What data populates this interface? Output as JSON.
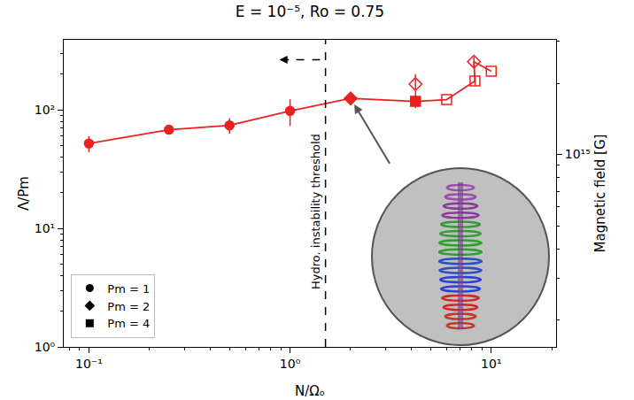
{
  "chart_data": {
    "type": "scatter",
    "title": "E = 10⁻⁵, Ro = 0.75",
    "x_label": "N/Ωₒ",
    "y_label": "Λ/Pm",
    "y2_label": "Magnetic field [G]",
    "log": true,
    "grid": false,
    "legend": "lower left",
    "xlim": [
      0.075,
      21
    ],
    "xticks": [
      {
        "value": 0.1,
        "label": "10⁻¹"
      },
      {
        "value": 1,
        "label": "10⁰"
      },
      {
        "value": 10,
        "label": "10¹"
      }
    ],
    "ylim": [
      1,
      390
    ],
    "yticks": [
      {
        "value": 1,
        "label": "10⁰"
      },
      {
        "value": 10,
        "label": "10¹"
      },
      {
        "value": 100,
        "label": "10²"
      }
    ],
    "y2lim": [
      154000000000000.0,
      3050000000000000.0
    ],
    "y2ticks": [
      {
        "value": 1000000000000000.0,
        "label": "10¹⁵"
      }
    ],
    "series": [
      {
        "type": "line",
        "color": "#e8221f",
        "x": [
          0.1,
          0.25,
          0.5,
          1.0,
          2.0,
          4.2,
          6.0,
          8.3,
          8.2,
          10.0
        ],
        "values": [
          52,
          68,
          74,
          98,
          125,
          118,
          122,
          175,
          255,
          212
        ]
      },
      {
        "name": "Pm = 1",
        "marker": "circle",
        "color": "#e8221f",
        "x": [
          0.1,
          0.25,
          0.5,
          1.0
        ],
        "values": [
          52,
          68,
          74,
          98
        ],
        "errors": [
          8,
          4,
          11,
          25
        ]
      },
      {
        "name": "Pm = 2",
        "marker": "diamond",
        "color": "#e8221f",
        "x": [
          2.0
        ],
        "values": [
          125
        ],
        "errors": [
          6
        ]
      },
      {
        "name": "Pm = 4",
        "marker": "square",
        "color": "#e8221f",
        "x": [
          4.2
        ],
        "values": [
          118
        ],
        "errors": [
          14
        ]
      },
      {
        "marker": "diamond-open",
        "color": "#e8221f",
        "x": [
          4.2,
          8.2
        ],
        "values": [
          165,
          255
        ],
        "errors": [
          35,
          25
        ]
      },
      {
        "marker": "square-open",
        "color": "#e8221f",
        "x": [
          6.0,
          8.3,
          10.0
        ],
        "values": [
          122,
          175,
          212
        ],
        "errors": [
          0,
          15,
          0
        ]
      }
    ],
    "threshold": {
      "x": 1.5,
      "label": "Hydro. instability threshold"
    }
  }
}
